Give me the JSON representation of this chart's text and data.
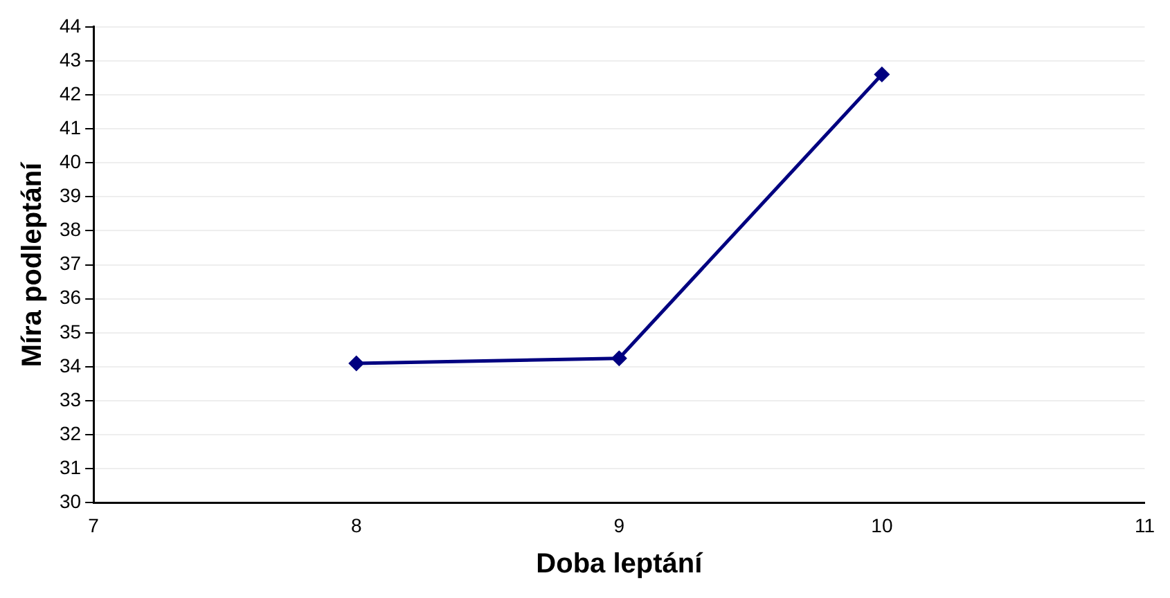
{
  "chart_data": {
    "type": "line",
    "xlabel": "Doba leptání",
    "ylabel": "Míra podleptání",
    "x": [
      8,
      9,
      10
    ],
    "series": [
      {
        "color": "#000080",
        "values": [
          34.1,
          34.25,
          42.6
        ]
      }
    ],
    "xlim": [
      7,
      11
    ],
    "xticks": [
      7,
      8,
      9,
      10,
      11
    ],
    "ylim": [
      30,
      44
    ],
    "yticks": [
      30,
      31,
      32,
      33,
      34,
      35,
      36,
      37,
      38,
      39,
      40,
      41,
      42,
      43,
      44
    ],
    "grid": "y",
    "legend": false,
    "marker": "diamond",
    "line_style": "solid"
  }
}
